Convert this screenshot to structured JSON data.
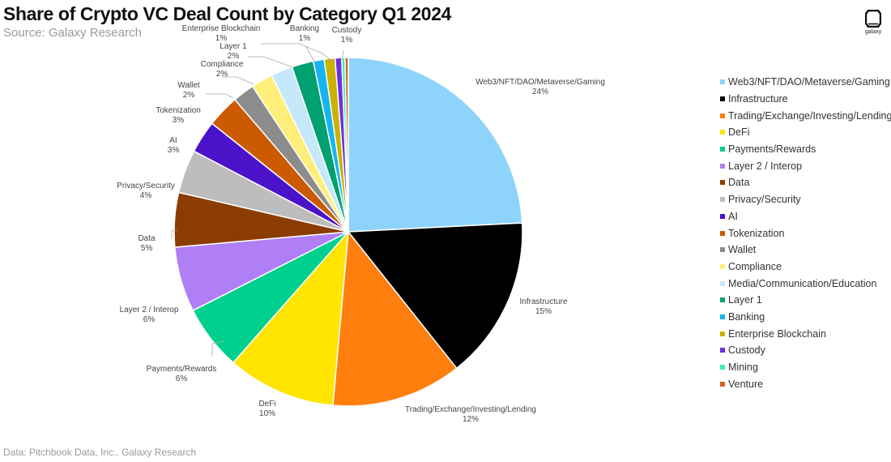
{
  "header": {
    "title": "Share of Crypto VC Deal Count by Category Q1 2024",
    "subtitle": "Source: Galaxy Research"
  },
  "footer": {
    "note": "Data: Pitchbook Data, Inc., Galaxy Research"
  },
  "logo": {
    "text": "galaxy",
    "icon": "galaxy-logo-icon"
  },
  "chart_data": {
    "type": "pie",
    "title": "Share of Crypto VC Deal Count by Category Q1 2024",
    "subtitle": "Source: Galaxy Research",
    "legend_position": "right",
    "start_angle": "12 o'clock",
    "direction": "clockwise",
    "slices": [
      {
        "name": "Web3/NFT/DAO/Metaverse/Gaming",
        "value": 24,
        "label": "24%",
        "color": "#8ed4fa"
      },
      {
        "name": "Infrastructure",
        "value": 15,
        "label": "15%",
        "color": "#000000"
      },
      {
        "name": "Trading/Exchange/Investing/Lending",
        "value": 12,
        "label": "12%",
        "color": "#ff7f0e"
      },
      {
        "name": "DeFi",
        "value": 10,
        "label": "10%",
        "color": "#ffe500"
      },
      {
        "name": "Payments/Rewards",
        "value": 6,
        "label": "6%",
        "color": "#00d08e"
      },
      {
        "name": "Layer 2 / Interop",
        "value": 6,
        "label": "6%",
        "color": "#b07ff5"
      },
      {
        "name": "Data",
        "value": 5,
        "label": "5%",
        "color": "#8b3c00"
      },
      {
        "name": "Privacy/Security",
        "value": 4,
        "label": "4%",
        "color": "#bdbdbd"
      },
      {
        "name": "AI",
        "value": 3,
        "label": "3%",
        "color": "#4b12c9"
      },
      {
        "name": "Tokenization",
        "value": 3,
        "label": "3%",
        "color": "#cc5a00"
      },
      {
        "name": "Wallet",
        "value": 2,
        "label": "2%",
        "color": "#8c8c8c"
      },
      {
        "name": "Compliance",
        "value": 2,
        "label": "2%",
        "color": "#ffef7a"
      },
      {
        "name": "Media/Communication/Education",
        "value": 2,
        "label": "",
        "color": "#c5e8fb"
      },
      {
        "name": "Layer 1",
        "value": 2,
        "label": "2%",
        "color": "#00a070"
      },
      {
        "name": "Banking",
        "value": 1,
        "label": "1%",
        "color": "#16b4f0"
      },
      {
        "name": "Enterprise Blockchain",
        "value": 1,
        "label": "1%",
        "color": "#c9b300"
      },
      {
        "name": "Custody",
        "value": 0.6,
        "label": "1%",
        "color": "#6f2fe0"
      },
      {
        "name": "Mining",
        "value": 0.3,
        "label": "",
        "color": "#3df0b5"
      },
      {
        "name": "Venture",
        "value": 0.3,
        "label": "",
        "color": "#d4661a"
      }
    ]
  }
}
